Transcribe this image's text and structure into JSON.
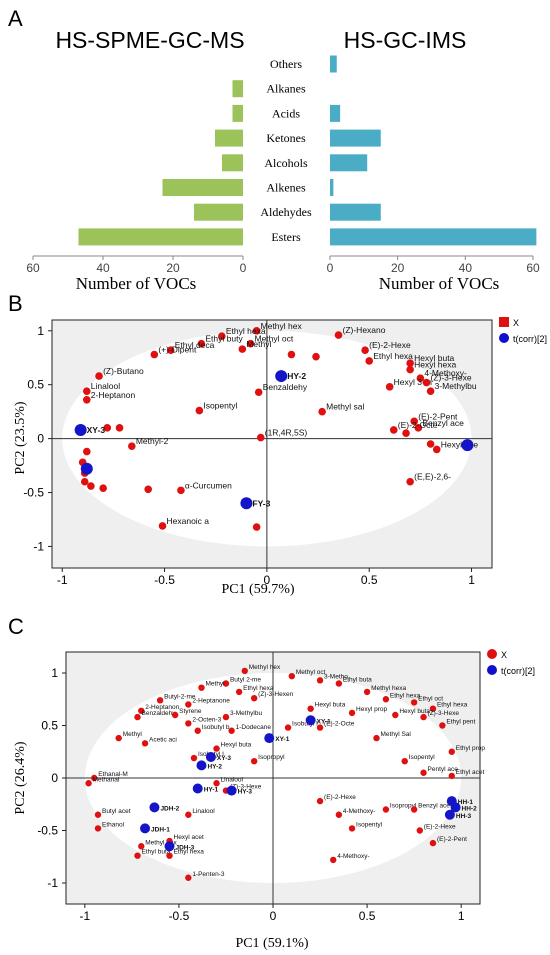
{
  "chart_data": [
    {
      "type": "bar",
      "panel_label": "A",
      "title": "HS-SPME-GC-MS",
      "xlabel": "Number of VOCs",
      "ylabel": "",
      "orientation": "horizontal-reversed",
      "xlim": [
        0,
        60
      ],
      "xticks": [
        60,
        40,
        20,
        0
      ],
      "color": "#9bc35a",
      "categories": [
        "Others",
        "Alkanes",
        "Acids",
        "Ketones",
        "Alcohols",
        "Alkenes",
        "Aldehydes",
        "Esters"
      ],
      "values": [
        0,
        3,
        3,
        8,
        6,
        23,
        14,
        47
      ]
    },
    {
      "type": "bar",
      "title": "HS-GC-IMS",
      "xlabel": "Number of VOCs",
      "ylabel": "",
      "orientation": "horizontal",
      "xlim": [
        0,
        60
      ],
      "xticks": [
        0,
        20,
        40,
        60
      ],
      "color": "#4bacc6",
      "categories": [
        "Others",
        "Alkanes",
        "Acids",
        "Ketones",
        "Alcohols",
        "Alkenes",
        "Aldehydes",
        "Esters"
      ],
      "values": [
        2,
        0,
        3,
        15,
        11,
        1,
        15,
        61
      ]
    },
    {
      "type": "scatter",
      "panel_label": "B",
      "xlabel": "PC1 (59.7%)",
      "ylabel": "PC2 (23.5%)",
      "xlim": [
        -1.05,
        1.1
      ],
      "ylim": [
        -1.2,
        1.1
      ],
      "xticks": [
        -1,
        -0.5,
        0,
        0.5,
        1
      ],
      "yticks": [
        1,
        0.5,
        0,
        -0.5,
        -1
      ],
      "ellipse_rx": 1,
      "ellipse_ry": 1,
      "legend_position": "top-right",
      "legend": [
        {
          "label": "X",
          "marker": "square",
          "color": "#dd1111"
        },
        {
          "label": "t(corr)[2]",
          "marker": "circle",
          "color": "#1010cc"
        }
      ],
      "series": [
        {
          "name": "X",
          "points": [
            {
              "x": -0.05,
              "y": 1.0,
              "label": "Methyl hex"
            },
            {
              "x": -0.22,
              "y": 0.95,
              "label": "Ethyl hexa"
            },
            {
              "x": -0.32,
              "y": 0.88,
              "label": "Ethyl buty"
            },
            {
              "x": -0.47,
              "y": 0.82,
              "label": "Ethyl deca"
            },
            {
              "x": -0.55,
              "y": 0.78,
              "label": "(+)-Dipent"
            },
            {
              "x": -0.08,
              "y": 0.88,
              "label": "Methyl oct"
            },
            {
              "x": -0.12,
              "y": 0.83,
              "label": "Methyl"
            },
            {
              "x": 0.12,
              "y": 0.78,
              "label": ""
            },
            {
              "x": 0.24,
              "y": 0.76,
              "label": ""
            },
            {
              "x": 0.35,
              "y": 0.96,
              "label": "(Z)-Hexano"
            },
            {
              "x": 0.48,
              "y": 0.82,
              "label": "(E)-2-Hexe"
            },
            {
              "x": 0.5,
              "y": 0.72,
              "label": "Ethyl hexa"
            },
            {
              "x": 0.7,
              "y": 0.7,
              "label": "Hexyl buta"
            },
            {
              "x": 0.7,
              "y": 0.64,
              "label": "Hexyl hexa"
            },
            {
              "x": 0.75,
              "y": 0.56,
              "label": "4-Methoxy-"
            },
            {
              "x": 0.6,
              "y": 0.48,
              "label": "Hexyl 3-m"
            },
            {
              "x": 0.78,
              "y": 0.52,
              "label": "(Z)-3-Hexe"
            },
            {
              "x": 0.8,
              "y": 0.44,
              "label": "3-Methylbu"
            },
            {
              "x": -0.82,
              "y": 0.58,
              "label": "(Z)-Butano"
            },
            {
              "x": -0.88,
              "y": 0.44,
              "label": "Linalool"
            },
            {
              "x": -0.88,
              "y": 0.36,
              "label": "2-Heptanon"
            },
            {
              "x": -0.33,
              "y": 0.26,
              "label": "Isopentyl"
            },
            {
              "x": -0.04,
              "y": 0.43,
              "label": "Benzaldehy"
            },
            {
              "x": 0.27,
              "y": 0.25,
              "label": "Methyl sal"
            },
            {
              "x": -0.78,
              "y": 0.1,
              "label": ""
            },
            {
              "x": -0.72,
              "y": 0.1,
              "label": ""
            },
            {
              "x": -0.03,
              "y": 0.01,
              "label": "(1R,4R,5S)"
            },
            {
              "x": -0.66,
              "y": -0.07,
              "label": "Methyl-2"
            },
            {
              "x": -0.88,
              "y": -0.12,
              "label": ""
            },
            {
              "x": -0.9,
              "y": -0.22,
              "label": ""
            },
            {
              "x": -0.89,
              "y": -0.32,
              "label": ""
            },
            {
              "x": -0.89,
              "y": -0.4,
              "label": ""
            },
            {
              "x": -0.86,
              "y": -0.44,
              "label": ""
            },
            {
              "x": -0.8,
              "y": -0.46,
              "label": ""
            },
            {
              "x": -0.58,
              "y": -0.47,
              "label": ""
            },
            {
              "x": -0.42,
              "y": -0.48,
              "label": "α-Curcumen"
            },
            {
              "x": -0.51,
              "y": -0.81,
              "label": "Hexanoic a"
            },
            {
              "x": -0.05,
              "y": -0.82,
              "label": ""
            },
            {
              "x": 0.72,
              "y": 0.16,
              "label": "(E)-2-Pent"
            },
            {
              "x": 0.74,
              "y": 0.1,
              "label": "Benzyl ace"
            },
            {
              "x": 0.62,
              "y": 0.08,
              "label": "(E)-2-Octe"
            },
            {
              "x": 0.68,
              "y": 0.05,
              "label": ""
            },
            {
              "x": 0.8,
              "y": -0.05,
              "label": ""
            },
            {
              "x": 0.83,
              "y": -0.1,
              "label": "Hexyl ace"
            },
            {
              "x": 0.7,
              "y": -0.4,
              "label": "(E,E)-2,6-"
            }
          ]
        },
        {
          "name": "t(corr)[2]",
          "points": [
            {
              "x": 0.07,
              "y": 0.58,
              "label": "HY-2"
            },
            {
              "x": -0.91,
              "y": 0.08,
              "label": "XY-3"
            },
            {
              "x": 0.98,
              "y": -0.06,
              "label": ""
            },
            {
              "x": -0.88,
              "y": -0.28,
              "label": ""
            },
            {
              "x": -0.1,
              "y": -0.6,
              "label": "FY-3"
            }
          ]
        }
      ]
    },
    {
      "type": "scatter",
      "panel_label": "C",
      "xlabel": "PC1 (59.1%)",
      "ylabel": "PC2 (26.4%)",
      "xlim": [
        -1.1,
        1.1
      ],
      "ylim": [
        -1.2,
        1.2
      ],
      "xticks": [
        -1,
        -0.5,
        0,
        0.5,
        1
      ],
      "yticks": [
        1,
        0.5,
        0,
        -0.5,
        -1
      ],
      "ellipse_rx": 1,
      "ellipse_ry": 1,
      "legend_position": "top-right",
      "legend": [
        {
          "label": "X",
          "marker": "circle",
          "color": "#dd1111"
        },
        {
          "label": "t(corr)[2]",
          "marker": "circle",
          "color": "#1010cc"
        }
      ],
      "series": [
        {
          "name": "X",
          "points": [
            {
              "x": -0.15,
              "y": 1.02,
              "label": "Methyl hex"
            },
            {
              "x": -0.25,
              "y": 0.9,
              "label": "Butyl 2-me"
            },
            {
              "x": -0.38,
              "y": 0.86,
              "label": "Methyl"
            },
            {
              "x": -0.18,
              "y": 0.82,
              "label": "Ethyl hexa"
            },
            {
              "x": -0.1,
              "y": 0.76,
              "label": "(Z)-3-Hexen"
            },
            {
              "x": -0.6,
              "y": 0.74,
              "label": "Butyl-2-me"
            },
            {
              "x": -0.45,
              "y": 0.7,
              "label": "2-Heptanone"
            },
            {
              "x": -0.7,
              "y": 0.64,
              "label": "2-Heptanon"
            },
            {
              "x": -0.72,
              "y": 0.58,
              "label": "Benzaldehy"
            },
            {
              "x": -0.52,
              "y": 0.6,
              "label": "Styrene"
            },
            {
              "x": -0.45,
              "y": 0.52,
              "label": "2-Octen-3"
            },
            {
              "x": -0.25,
              "y": 0.58,
              "label": "3-Methylbu"
            },
            {
              "x": -0.82,
              "y": 0.38,
              "label": "Methyl"
            },
            {
              "x": -0.68,
              "y": 0.33,
              "label": "Acetic aci"
            },
            {
              "x": -0.4,
              "y": 0.45,
              "label": "Isobutyl b"
            },
            {
              "x": -0.22,
              "y": 0.45,
              "label": "1-Dodecane"
            },
            {
              "x": -0.3,
              "y": 0.28,
              "label": "Hexyl buta"
            },
            {
              "x": -0.42,
              "y": 0.19,
              "label": "Isobutyl I"
            },
            {
              "x": -0.1,
              "y": 0.16,
              "label": "Isopropyl"
            },
            {
              "x": -0.25,
              "y": -0.12,
              "label": "(Z)-3-Hexe"
            },
            {
              "x": -0.3,
              "y": -0.05,
              "label": "Linalool"
            },
            {
              "x": 0.1,
              "y": 0.97,
              "label": "Methyl oct"
            },
            {
              "x": 0.25,
              "y": 0.93,
              "label": "3-Metho"
            },
            {
              "x": 0.35,
              "y": 0.9,
              "label": "Ethyl buta"
            },
            {
              "x": 0.5,
              "y": 0.82,
              "label": "Methyl hexa"
            },
            {
              "x": 0.6,
              "y": 0.75,
              "label": "Ethyl hexa"
            },
            {
              "x": 0.75,
              "y": 0.72,
              "label": "Ethyl oct"
            },
            {
              "x": 0.85,
              "y": 0.66,
              "label": "Ethyl hexa"
            },
            {
              "x": 0.65,
              "y": 0.6,
              "label": "Hexyl buta"
            },
            {
              "x": 0.8,
              "y": 0.58,
              "label": "(Z)-3-Hexe"
            },
            {
              "x": 0.2,
              "y": 0.66,
              "label": "Hexyl buta"
            },
            {
              "x": 0.42,
              "y": 0.62,
              "label": "Hexyl prop"
            },
            {
              "x": 0.9,
              "y": 0.5,
              "label": "Ethyl pent"
            },
            {
              "x": 0.55,
              "y": 0.38,
              "label": "Methyl Sal"
            },
            {
              "x": 0.25,
              "y": 0.48,
              "label": "(E)-2-Octe"
            },
            {
              "x": 0.08,
              "y": 0.48,
              "label": "Isobutyl l"
            },
            {
              "x": 0.95,
              "y": 0.25,
              "label": "Ethyl prop"
            },
            {
              "x": 0.7,
              "y": 0.16,
              "label": "Isopentyl"
            },
            {
              "x": 0.8,
              "y": 0.05,
              "label": "Pentyl ace"
            },
            {
              "x": 0.95,
              "y": 0.02,
              "label": "Ethyl acet"
            },
            {
              "x": 0.6,
              "y": -0.3,
              "label": "Isopropyl"
            },
            {
              "x": 0.75,
              "y": -0.3,
              "label": "Benzyl ace"
            },
            {
              "x": 0.25,
              "y": -0.22,
              "label": "(E)-2-Hexe"
            },
            {
              "x": 0.35,
              "y": -0.35,
              "label": "4-Methoxy-"
            },
            {
              "x": 0.42,
              "y": -0.48,
              "label": "Isopentyl"
            },
            {
              "x": 0.78,
              "y": -0.5,
              "label": "(E)-2-Hexe"
            },
            {
              "x": 0.85,
              "y": -0.62,
              "label": "(E)-2-Pent"
            },
            {
              "x": 0.32,
              "y": -0.78,
              "label": "4-Methoxy-"
            },
            {
              "x": -0.95,
              "y": 0.0,
              "label": "Ethanal-M"
            },
            {
              "x": -0.98,
              "y": -0.05,
              "label": "Methanal"
            },
            {
              "x": -0.93,
              "y": -0.35,
              "label": "Butyl acet"
            },
            {
              "x": -0.93,
              "y": -0.48,
              "label": "Ethanol"
            },
            {
              "x": -0.7,
              "y": -0.65,
              "label": "Methyl hex"
            },
            {
              "x": -0.72,
              "y": -0.74,
              "label": "Ethyl buta"
            },
            {
              "x": -0.55,
              "y": -0.6,
              "label": "Hexyl acet"
            },
            {
              "x": -0.55,
              "y": -0.74,
              "label": "Ethyl hexa"
            },
            {
              "x": -0.45,
              "y": -0.95,
              "label": "1-Penten-3"
            },
            {
              "x": -0.45,
              "y": -0.35,
              "label": "Linalool"
            }
          ]
        },
        {
          "name": "t(corr)[2]",
          "points": [
            {
              "x": 0.2,
              "y": 0.55,
              "label": "XY-1"
            },
            {
              "x": -0.02,
              "y": 0.38,
              "label": "XY-1"
            },
            {
              "x": -0.33,
              "y": 0.2,
              "label": "XY-3"
            },
            {
              "x": -0.38,
              "y": 0.12,
              "label": "HY-2"
            },
            {
              "x": -0.22,
              "y": -0.12,
              "label": "HY-3"
            },
            {
              "x": -0.4,
              "y": -0.1,
              "label": "HY-1"
            },
            {
              "x": -0.63,
              "y": -0.28,
              "label": "JDH-2"
            },
            {
              "x": -0.68,
              "y": -0.48,
              "label": "JDH-1"
            },
            {
              "x": -0.55,
              "y": -0.65,
              "label": "JDH-3"
            },
            {
              "x": 0.95,
              "y": -0.22,
              "label": "HH-1"
            },
            {
              "x": 0.97,
              "y": -0.28,
              "label": "HH-2"
            },
            {
              "x": 0.94,
              "y": -0.35,
              "label": "HH-3"
            }
          ]
        }
      ]
    }
  ]
}
